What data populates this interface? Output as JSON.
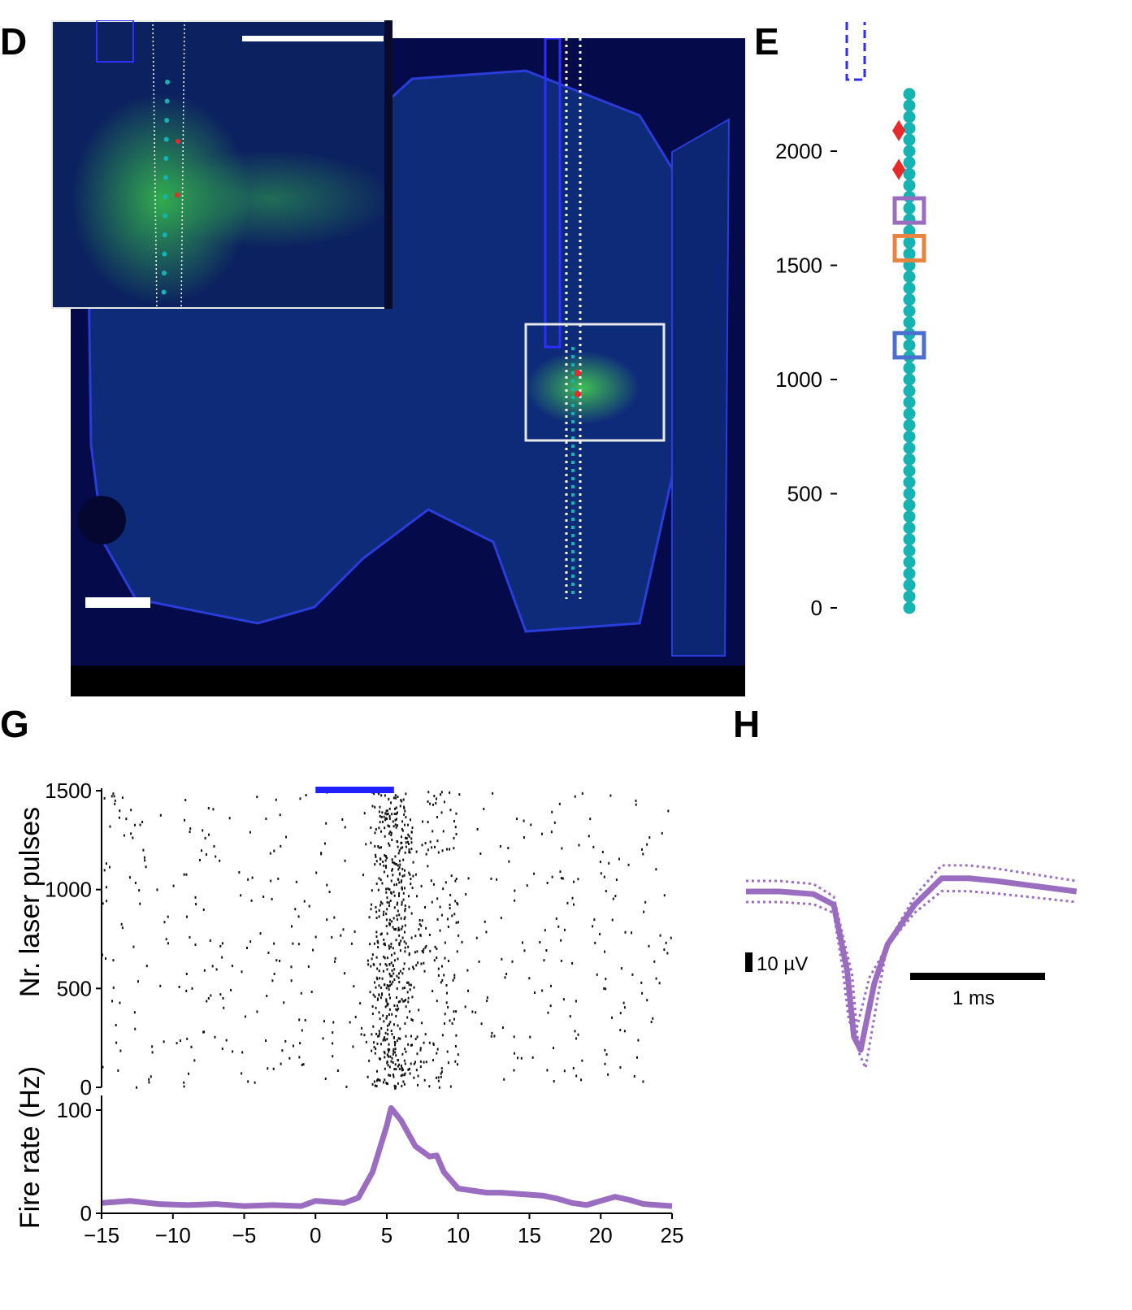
{
  "panels": {
    "D": {
      "letter": "D"
    },
    "E": {
      "letter": "E"
    },
    "G": {
      "letter": "G"
    },
    "H": {
      "letter": "H"
    }
  },
  "colors": {
    "tissue": "#0b1a63",
    "tissue_dark": "#06083a",
    "channel": "#16b3b3",
    "marker_red": "#e82a2a",
    "purple": "#9b6dc0",
    "orange": "#e8843f",
    "blue_box": "#4a6fd0",
    "laser": "#1f1fff"
  },
  "chart_data": [
    {
      "id": "E",
      "type": "scatter",
      "title": "",
      "xlabel": "",
      "ylabel": "",
      "ylim": [
        0,
        2280
      ],
      "yticks": [
        0,
        500,
        1000,
        1500,
        2000
      ],
      "channels_y": [
        0,
        50,
        100,
        150,
        200,
        250,
        300,
        350,
        400,
        450,
        500,
        550,
        600,
        650,
        700,
        750,
        800,
        850,
        900,
        950,
        1000,
        1050,
        1100,
        1150,
        1200,
        1250,
        1300,
        1350,
        1400,
        1450,
        1500,
        1550,
        1600,
        1650,
        1700,
        1750,
        1800,
        1850,
        1900,
        1950,
        2000,
        2050,
        2100,
        2150,
        2200,
        2250
      ],
      "red_diamonds_y": [
        2090,
        1920
      ],
      "boxes": [
        {
          "y": 1740,
          "color": "purple"
        },
        {
          "y": 1575,
          "color": "orange"
        },
        {
          "y": 1150,
          "color": "blue"
        }
      ]
    },
    {
      "id": "G-raster",
      "type": "scatter",
      "title": "",
      "xlabel": "",
      "ylabel": "Nr. laser pulses",
      "xlim": [
        -15,
        25
      ],
      "ylim": [
        0,
        1500
      ],
      "yticks": [
        0,
        500,
        1000,
        1500
      ],
      "laser_on": [
        0,
        5.5
      ],
      "spikes_rows": 1500,
      "response_peak_x": 5.3
    },
    {
      "id": "G-rate",
      "type": "line",
      "title": "",
      "xlabel": "",
      "ylabel": "Fire rate (Hz)",
      "xlim": [
        -15,
        25
      ],
      "ylim": [
        0,
        110
      ],
      "xticks": [
        -15,
        -10,
        -5,
        0,
        5,
        10,
        15,
        20,
        25
      ],
      "xticklabels": [
        "−15",
        "−10",
        "−5",
        "0",
        "5",
        "10",
        "15",
        "20",
        "25"
      ],
      "yticks": [
        0,
        100
      ],
      "x": [
        -15,
        -13,
        -11,
        -9,
        -7,
        -5,
        -3,
        -1,
        0,
        1,
        2,
        3,
        4,
        5,
        5.3,
        6,
        7,
        8,
        8.5,
        9,
        10,
        11,
        12,
        13,
        14,
        15,
        16,
        17,
        18,
        19,
        20,
        21,
        22,
        23,
        24,
        25
      ],
      "values": [
        10,
        12,
        9,
        8,
        9,
        7,
        8,
        7,
        12,
        11,
        10,
        15,
        40,
        85,
        102,
        90,
        65,
        55,
        56,
        40,
        24,
        22,
        20,
        20,
        19,
        18,
        17,
        14,
        10,
        8,
        12,
        16,
        13,
        9,
        8,
        7
      ]
    },
    {
      "id": "H",
      "type": "line",
      "title": "",
      "xlabel": "",
      "ylabel": "",
      "scalebar_y": "10 µV",
      "scalebar_x": "1 ms",
      "t_ms": [
        -0.75,
        -0.5,
        -0.25,
        -0.1,
        0,
        0.05,
        0.1,
        0.2,
        0.3,
        0.5,
        0.7,
        0.9,
        1.1,
        1.4,
        1.7
      ],
      "mean_uv": [
        0,
        0,
        -1,
        -5,
        -30,
        -55,
        -60,
        -35,
        -20,
        -5,
        5,
        5,
        4,
        2,
        0
      ]
    }
  ],
  "E_axis": {
    "tick_labels": [
      "2000",
      "1500",
      "1000",
      "500",
      "0"
    ]
  },
  "G_axis": {
    "raster_tick_labels": [
      "1500",
      "1000",
      "500",
      "0"
    ],
    "rate_tick_labels": [
      "100",
      "0"
    ],
    "x_tick_labels": [
      "−15",
      "−10",
      "−5",
      "0",
      "5",
      "10",
      "15",
      "20",
      "25"
    ],
    "raster_ylabel": "Nr. laser pulses",
    "rate_ylabel": "Fire rate (Hz)"
  },
  "H_scale": {
    "voltage": "10 µV",
    "time": "1 ms"
  }
}
